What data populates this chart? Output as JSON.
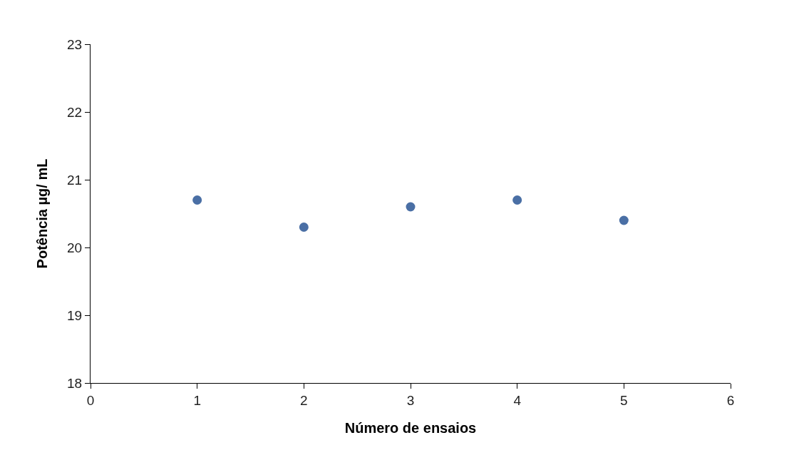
{
  "chart_data": {
    "type": "scatter",
    "xlabel": "Número de ensaios",
    "ylabel": "Potência µg/ mL",
    "x": [
      1,
      2,
      3,
      4,
      5
    ],
    "series": [
      {
        "color": "#4a6fa5",
        "values": [
          20.7,
          20.3,
          20.6,
          20.7,
          20.4
        ]
      }
    ],
    "xlim": [
      0,
      6
    ],
    "xticks": [
      0,
      1,
      2,
      3,
      4,
      5,
      6
    ],
    "ylim": [
      18,
      23
    ],
    "yticks": [
      18,
      19,
      20,
      21,
      22,
      23
    ],
    "grid": false,
    "legend": false,
    "marker": "circle"
  }
}
